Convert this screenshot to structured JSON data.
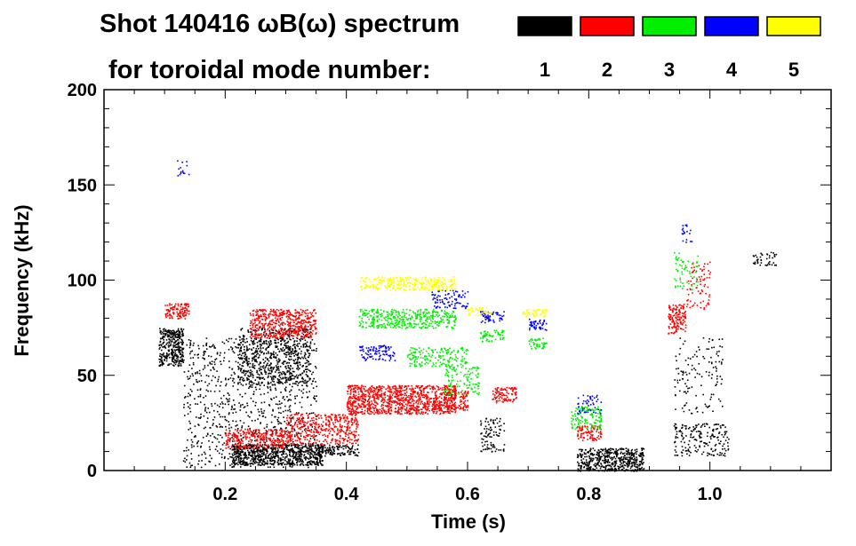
{
  "chart_data": {
    "type": "scatter",
    "title": {
      "shot_prefix": "Shot 140416 ",
      "quantity": "ωB(ω) spectrum",
      "subtitle": "for toroidal mode number:"
    },
    "xlabel": "Time (s)",
    "ylabel": "Frequency (kHz)",
    "xlim": [
      0.0,
      1.2
    ],
    "ylim": [
      0,
      200
    ],
    "xticks": [
      {
        "value": 0.2,
        "label": "0.2"
      },
      {
        "value": 0.4,
        "label": "0.4"
      },
      {
        "value": 0.6,
        "label": "0.6"
      },
      {
        "value": 0.8,
        "label": "0.8"
      },
      {
        "value": 1.0,
        "label": "1.0"
      }
    ],
    "yticks": [
      {
        "value": 0,
        "label": "0"
      },
      {
        "value": 50,
        "label": "50"
      },
      {
        "value": 100,
        "label": "100"
      },
      {
        "value": 150,
        "label": "150"
      },
      {
        "value": 200,
        "label": "200"
      }
    ],
    "legend": [
      {
        "mode": "1",
        "color": "#000000"
      },
      {
        "mode": "2",
        "color": "#ff0000"
      },
      {
        "mode": "3",
        "color": "#00ee00"
      },
      {
        "mode": "4",
        "color": "#0000ff"
      },
      {
        "mode": "5",
        "color": "#ffff00"
      }
    ],
    "series": [
      {
        "name": "n=1",
        "color": "#000000",
        "bands": [
          {
            "t": [
              0.09,
              0.13
            ],
            "f": [
              55,
              75
            ],
            "density": 0.85
          },
          {
            "t": [
              0.13,
              0.35
            ],
            "f": [
              2,
              70
            ],
            "density": 0.12
          },
          {
            "t": [
              0.22,
              0.34
            ],
            "f": [
              45,
              75
            ],
            "density": 0.35
          },
          {
            "t": [
              0.21,
              0.36
            ],
            "f": [
              3,
              14
            ],
            "density": 0.9
          },
          {
            "t": [
              0.35,
              0.42
            ],
            "f": [
              8,
              14
            ],
            "density": 0.6
          },
          {
            "t": [
              0.62,
              0.66
            ],
            "f": [
              10,
              28
            ],
            "density": 0.25
          },
          {
            "t": [
              0.78,
              0.89
            ],
            "f": [
              0,
              12
            ],
            "density": 0.75
          },
          {
            "t": [
              0.94,
              1.03
            ],
            "f": [
              8,
              25
            ],
            "density": 0.25
          },
          {
            "t": [
              0.94,
              1.02
            ],
            "f": [
              30,
              70
            ],
            "density": 0.08
          },
          {
            "t": [
              1.07,
              1.11
            ],
            "f": [
              108,
              115
            ],
            "density": 0.3
          }
        ]
      },
      {
        "name": "n=2",
        "color": "#ff0000",
        "bands": [
          {
            "t": [
              0.1,
              0.14
            ],
            "f": [
              80,
              88
            ],
            "density": 0.7
          },
          {
            "t": [
              0.24,
              0.35
            ],
            "f": [
              70,
              85
            ],
            "density": 0.6
          },
          {
            "t": [
              0.2,
              0.3
            ],
            "f": [
              12,
              22
            ],
            "density": 0.55
          },
          {
            "t": [
              0.3,
              0.42
            ],
            "f": [
              14,
              30
            ],
            "density": 0.45
          },
          {
            "t": [
              0.4,
              0.58
            ],
            "f": [
              30,
              45
            ],
            "density": 0.8
          },
          {
            "t": [
              0.56,
              0.6
            ],
            "f": [
              32,
              42
            ],
            "density": 0.5
          },
          {
            "t": [
              0.64,
              0.68
            ],
            "f": [
              36,
              44
            ],
            "density": 0.6
          },
          {
            "t": [
              0.78,
              0.82
            ],
            "f": [
              16,
              24
            ],
            "density": 0.55
          },
          {
            "t": [
              0.93,
              0.96
            ],
            "f": [
              72,
              88
            ],
            "density": 0.6
          },
          {
            "t": [
              0.96,
              1.0
            ],
            "f": [
              85,
              110
            ],
            "density": 0.15
          }
        ]
      },
      {
        "name": "n=3",
        "color": "#00ee00",
        "bands": [
          {
            "t": [
              0.42,
              0.58
            ],
            "f": [
              75,
              85
            ],
            "density": 0.5
          },
          {
            "t": [
              0.5,
              0.6
            ],
            "f": [
              55,
              65
            ],
            "density": 0.35
          },
          {
            "t": [
              0.62,
              0.66
            ],
            "f": [
              68,
              74
            ],
            "density": 0.5
          },
          {
            "t": [
              0.7,
              0.73
            ],
            "f": [
              64,
              70
            ],
            "density": 0.5
          },
          {
            "t": [
              0.56,
              0.62
            ],
            "f": [
              40,
              55
            ],
            "density": 0.25
          },
          {
            "t": [
              0.77,
              0.82
            ],
            "f": [
              22,
              34
            ],
            "density": 0.4
          },
          {
            "t": [
              0.94,
              0.98
            ],
            "f": [
              95,
              115
            ],
            "density": 0.15
          }
        ]
      },
      {
        "name": "n=4",
        "color": "#0000ff",
        "bands": [
          {
            "t": [
              0.42,
              0.48
            ],
            "f": [
              58,
              66
            ],
            "density": 0.4
          },
          {
            "t": [
              0.54,
              0.6
            ],
            "f": [
              85,
              95
            ],
            "density": 0.3
          },
          {
            "t": [
              0.62,
              0.66
            ],
            "f": [
              78,
              84
            ],
            "density": 0.5
          },
          {
            "t": [
              0.7,
              0.73
            ],
            "f": [
              74,
              80
            ],
            "density": 0.5
          },
          {
            "t": [
              0.78,
              0.82
            ],
            "f": [
              30,
              40
            ],
            "density": 0.25
          },
          {
            "t": [
              0.12,
              0.14
            ],
            "f": [
              155,
              165
            ],
            "density": 0.15
          },
          {
            "t": [
              0.95,
              0.97
            ],
            "f": [
              120,
              130
            ],
            "density": 0.2
          }
        ]
      },
      {
        "name": "n=5",
        "color": "#ffff00",
        "bands": [
          {
            "t": [
              0.42,
              0.58
            ],
            "f": [
              95,
              102
            ],
            "density": 0.55
          },
          {
            "t": [
              0.6,
              0.64
            ],
            "f": [
              82,
              86
            ],
            "density": 0.5
          },
          {
            "t": [
              0.69,
              0.73
            ],
            "f": [
              81,
              85
            ],
            "density": 0.6
          }
        ]
      }
    ]
  }
}
